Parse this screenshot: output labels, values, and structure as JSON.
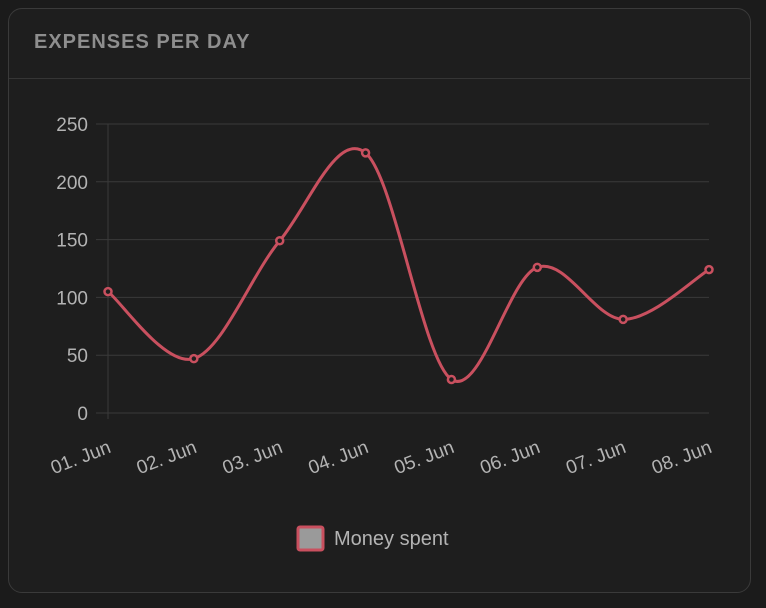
{
  "card": {
    "title": "EXPENSES PER DAY"
  },
  "colors": {
    "line": "#c9505f",
    "grid": "#3a3a3a",
    "legend_fill": "#9a9a9a"
  },
  "chart_data": {
    "type": "line",
    "smooth": true,
    "categories": [
      "01. Jun",
      "02. Jun",
      "03. Jun",
      "04. Jun",
      "05. Jun",
      "06. Jun",
      "07. Jun",
      "08. Jun"
    ],
    "series": [
      {
        "name": "Money spent",
        "values": [
          105,
          47,
          149,
          225,
          29,
          126,
          81,
          124
        ]
      }
    ],
    "ylim": [
      0,
      250
    ],
    "yticks": [
      0,
      50,
      100,
      150,
      200,
      250
    ],
    "grid": true,
    "legend_position": "bottom-center"
  }
}
